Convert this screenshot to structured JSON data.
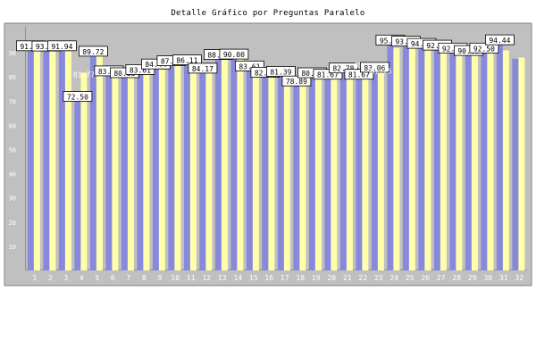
{
  "chart_data": {
    "type": "bar",
    "title": "Detalle Gráfico por Preguntas Paralelo",
    "xlabel": "",
    "ylabel": "",
    "ylim": [
      0,
      100
    ],
    "yticks": [
      10,
      20,
      30,
      40,
      50,
      60,
      70,
      80,
      90
    ],
    "grid": false,
    "categories": [
      "1",
      "2",
      "3",
      "4",
      "5",
      "6",
      "7",
      "8",
      "9",
      "10",
      "11",
      "12",
      "13",
      "14",
      "15",
      "16",
      "17",
      "18",
      "19",
      "20",
      "21",
      "22",
      "23",
      "24",
      "25",
      "26",
      "27",
      "28",
      "29",
      "30",
      "31",
      "32"
    ],
    "series": [
      {
        "color": "#8888dd",
        "values": [
          91.94,
          93.33,
          91.94,
          72.5,
          89.72,
          83.06,
          80.83,
          83.61,
          84.44,
          87.22,
          86.11,
          84.17,
          88.33,
          90.0,
          83.61,
          82.5,
          81.39,
          78.89,
          80.83,
          81.67,
          82.78,
          81.67,
          83.06,
          95.83,
          93.89,
          94.44,
          92.22,
          92.5,
          90.0,
          92.5,
          94.44,
          87.5
        ],
        "labels": [
          "91.94",
          "93.33",
          "91.94",
          "72.50",
          "89.72",
          "83.06",
          "80.83",
          "83.61",
          "84.44",
          "87.22",
          "86.11",
          "84.17",
          "88.33",
          "90.00",
          "83.61",
          "82.50",
          "81.39",
          "78.89",
          "80.83",
          "81.67",
          "82.78",
          "81.67",
          "83.06",
          "95.83",
          "93.89",
          "94.44",
          "92.22",
          "92.50",
          "90.00",
          "92.50",
          "94.44",
          ""
        ]
      },
      {
        "color": "#ffffaa",
        "values": [
          92.0,
          92.5,
          90.5,
          81.77,
          89.0,
          84.0,
          82.0,
          85.0,
          83.0,
          86.0,
          87.5,
          85.5,
          88.0,
          89.0,
          85.0,
          83.5,
          84.0,
          83.0,
          83.5,
          84.5,
          85.0,
          85.55,
          81.75,
          92.0,
          93.5,
          92.0,
          90.5,
          90.5,
          92.0,
          91.5,
          91.0,
          88.0
        ],
        "labels": [
          "",
          "",
          "",
          "81.77",
          "",
          "",
          "",
          "",
          "",
          "",
          "",
          "",
          "",
          "",
          "",
          "",
          "",
          "",
          "",
          "",
          "",
          "85.55",
          "81.75",
          "",
          "",
          "",
          "",
          "",
          "",
          "",
          "",
          ""
        ]
      }
    ]
  }
}
